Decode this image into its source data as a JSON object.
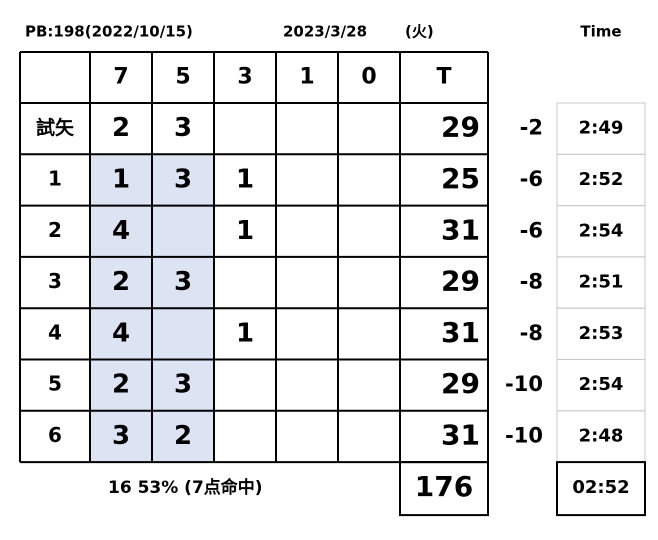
{
  "header": {
    "pb": "PB:198(2022/10/15)",
    "date": "2023/3/28",
    "weekday": "(火)",
    "time_label": "Time"
  },
  "table": {
    "columns": [
      "7",
      "5",
      "3",
      "1",
      "0",
      "T"
    ],
    "rows": [
      {
        "label": "試矢",
        "cells": [
          "2",
          "3",
          null,
          null,
          null
        ],
        "total": "29",
        "diff": "-2",
        "time": "2:49"
      },
      {
        "label": "1",
        "cells": [
          "1",
          "3",
          "1",
          null,
          null
        ],
        "total": "25",
        "diff": "-6",
        "time": "2:52"
      },
      {
        "label": "2",
        "cells": [
          "4",
          null,
          "1",
          null,
          null
        ],
        "total": "31",
        "diff": "-6",
        "time": "2:54"
      },
      {
        "label": "3",
        "cells": [
          "2",
          "3",
          null,
          null,
          null
        ],
        "total": "29",
        "diff": "-8",
        "time": "2:51"
      },
      {
        "label": "4",
        "cells": [
          "4",
          null,
          "1",
          null,
          null
        ],
        "total": "31",
        "diff": "-8",
        "time": "2:53"
      },
      {
        "label": "5",
        "cells": [
          "2",
          "3",
          null,
          null,
          null
        ],
        "total": "29",
        "diff": "-10",
        "time": "2:54"
      },
      {
        "label": "6",
        "cells": [
          "3",
          "2",
          null,
          null,
          null
        ],
        "total": "31",
        "diff": "-10",
        "time": "2:48"
      }
    ]
  },
  "footer": {
    "summary": "16  53% (7点命中)",
    "grand_total": "176",
    "average_time": "02:52"
  }
}
